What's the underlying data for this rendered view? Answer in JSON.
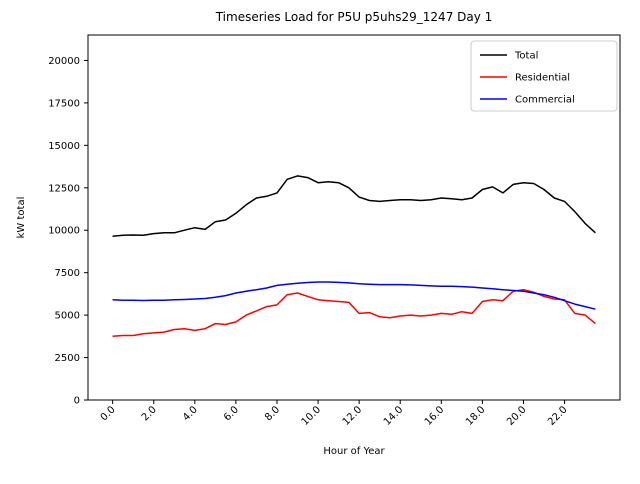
{
  "chart_data": {
    "type": "line",
    "title": "Timeseries Load for P5U p5uhs29_1247  Day 1",
    "xlabel": "Hour of Year",
    "ylabel": "kW total",
    "xlim": [
      -1.2,
      24.7
    ],
    "ylim": [
      0,
      21500
    ],
    "grid": false,
    "xticks": [
      0,
      2,
      4,
      6,
      8,
      10,
      12,
      14,
      16,
      18,
      20,
      22
    ],
    "xtick_labels": [
      "0.0",
      "2.0",
      "4.0",
      "6.0",
      "8.0",
      "10.0",
      "12.0",
      "14.0",
      "16.0",
      "18.0",
      "20.0",
      "22.0"
    ],
    "yticks": [
      0,
      2500,
      5000,
      7500,
      10000,
      12500,
      15000,
      17500,
      20000
    ],
    "ytick_labels": [
      "0",
      "2500",
      "5000",
      "7500",
      "10000",
      "12500",
      "15000",
      "17500",
      "20000"
    ],
    "legend": {
      "position": "upper right",
      "entries": [
        "Total",
        "Residential",
        "Commercial"
      ]
    },
    "x": [
      0,
      0.5,
      1,
      1.5,
      2,
      2.5,
      3,
      3.5,
      4,
      4.5,
      5,
      5.5,
      6,
      6.5,
      7,
      7.5,
      8,
      8.5,
      9,
      9.5,
      10,
      10.5,
      11,
      11.5,
      12,
      12.5,
      13,
      13.5,
      14,
      14.5,
      15,
      15.5,
      16,
      16.5,
      17,
      17.5,
      18,
      18.5,
      19,
      19.5,
      20,
      20.5,
      21,
      21.5,
      22,
      22.5,
      23,
      23.5
    ],
    "series": [
      {
        "name": "Total",
        "color": "#000000",
        "values": [
          9650,
          9700,
          9720,
          9700,
          9800,
          9850,
          9850,
          10000,
          10150,
          10050,
          10500,
          10600,
          11000,
          11500,
          11900,
          12000,
          12200,
          13000,
          13200,
          13100,
          12800,
          12850,
          12800,
          12500,
          11950,
          11750,
          11700,
          11750,
          11800,
          11800,
          11750,
          11800,
          11900,
          11850,
          11800,
          11900,
          12400,
          12550,
          12200,
          12700,
          12800,
          12750,
          12400,
          11900,
          11700,
          11100,
          10400,
          9850
        ]
      },
      {
        "name": "Residential",
        "color": "#ff0000",
        "values": [
          3750,
          3800,
          3800,
          3900,
          3950,
          4000,
          4150,
          4200,
          4100,
          4200,
          4500,
          4450,
          4600,
          5000,
          5250,
          5500,
          5600,
          6200,
          6300,
          6100,
          5900,
          5850,
          5800,
          5750,
          5100,
          5150,
          4900,
          4850,
          4950,
          5000,
          4950,
          5000,
          5100,
          5050,
          5200,
          5100,
          5800,
          5900,
          5850,
          6400,
          6500,
          6350,
          6100,
          5950,
          5900,
          5100,
          5000,
          4500
        ]
      },
      {
        "name": "Commercial",
        "color": "#0000ff",
        "values": [
          5900,
          5880,
          5870,
          5860,
          5870,
          5880,
          5900,
          5920,
          5950,
          5980,
          6050,
          6150,
          6300,
          6400,
          6500,
          6600,
          6750,
          6820,
          6880,
          6920,
          6950,
          6950,
          6930,
          6900,
          6850,
          6820,
          6800,
          6800,
          6800,
          6780,
          6750,
          6720,
          6700,
          6700,
          6680,
          6650,
          6600,
          6550,
          6500,
          6450,
          6400,
          6300,
          6200,
          6050,
          5850,
          5650,
          5500,
          5350
        ]
      }
    ]
  }
}
